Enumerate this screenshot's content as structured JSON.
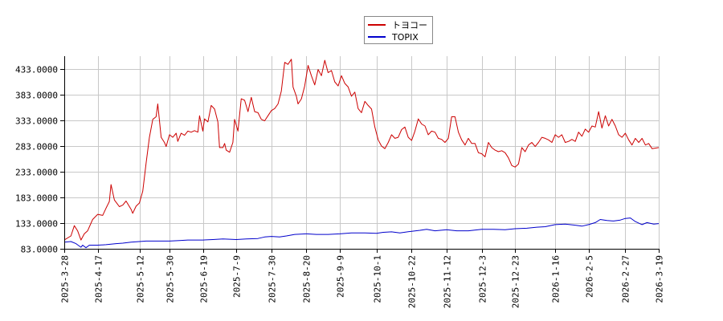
{
  "chart_data": {
    "type": "line",
    "title": "",
    "xlabel": "",
    "ylabel": "",
    "ylim": [
      83,
      458
    ],
    "y_ticks": [
      "83.0000",
      "133.0000",
      "183.0000",
      "233.0000",
      "283.0000",
      "333.0000",
      "383.0000",
      "433.0000"
    ],
    "y_tick_values": [
      83,
      133,
      183,
      233,
      283,
      333,
      383,
      433
    ],
    "x_range": [
      "2025-03-28",
      "2026-03-19"
    ],
    "x_ticks": [
      "2025-3-28",
      "2025-4-17",
      "2025-5-12",
      "2025-5-30",
      "2025-6-19",
      "2025-7-9",
      "2025-7-30",
      "2025-8-20",
      "2025-9-9",
      "2025-10-1",
      "2025-10-22",
      "2025-11-12",
      "2025-12-3",
      "2025-12-23",
      "2026-1-16",
      "2026-2-5",
      "2026-2-27",
      "2026-3-19"
    ],
    "grid": true,
    "legend_position": "top-center",
    "series": [
      {
        "name": "トヨコー",
        "color": "#cc0000",
        "points": [
          [
            "2025-03-28",
            100
          ],
          [
            "2025-04-01",
            108
          ],
          [
            "2025-04-03",
            128
          ],
          [
            "2025-04-05",
            118
          ],
          [
            "2025-04-07",
            100
          ],
          [
            "2025-04-09",
            112
          ],
          [
            "2025-04-11",
            118
          ],
          [
            "2025-04-14",
            140
          ],
          [
            "2025-04-17",
            150
          ],
          [
            "2025-04-20",
            148
          ],
          [
            "2025-04-22",
            162
          ],
          [
            "2025-04-24",
            175
          ],
          [
            "2025-04-25",
            208
          ],
          [
            "2025-04-27",
            178
          ],
          [
            "2025-04-30",
            165
          ],
          [
            "2025-05-02",
            168
          ],
          [
            "2025-05-04",
            176
          ],
          [
            "2025-05-07",
            160
          ],
          [
            "2025-05-08",
            152
          ],
          [
            "2025-05-10",
            166
          ],
          [
            "2025-05-12",
            172
          ],
          [
            "2025-05-14",
            195
          ],
          [
            "2025-05-16",
            250
          ],
          [
            "2025-05-18",
            300
          ],
          [
            "2025-05-20",
            335
          ],
          [
            "2025-05-22",
            340
          ],
          [
            "2025-05-23",
            365
          ],
          [
            "2025-05-25",
            300
          ],
          [
            "2025-05-27",
            290
          ],
          [
            "2025-05-28",
            282
          ],
          [
            "2025-05-30",
            305
          ],
          [
            "2025-06-01",
            300
          ],
          [
            "2025-06-03",
            308
          ],
          [
            "2025-06-04",
            292
          ],
          [
            "2025-06-06",
            308
          ],
          [
            "2025-06-08",
            304
          ],
          [
            "2025-06-10",
            312
          ],
          [
            "2025-06-12",
            310
          ],
          [
            "2025-06-14",
            313
          ],
          [
            "2025-06-16",
            310
          ],
          [
            "2025-06-17",
            342
          ],
          [
            "2025-06-19",
            312
          ],
          [
            "2025-06-20",
            336
          ],
          [
            "2025-06-22",
            330
          ],
          [
            "2025-06-24",
            362
          ],
          [
            "2025-06-26",
            355
          ],
          [
            "2025-06-28",
            330
          ],
          [
            "2025-06-29",
            280
          ],
          [
            "2025-07-01",
            280
          ],
          [
            "2025-07-02",
            288
          ],
          [
            "2025-07-03",
            275
          ],
          [
            "2025-07-05",
            271
          ],
          [
            "2025-07-07",
            290
          ],
          [
            "2025-07-08",
            335
          ],
          [
            "2025-07-10",
            312
          ],
          [
            "2025-07-12",
            375
          ],
          [
            "2025-07-14",
            372
          ],
          [
            "2025-07-16",
            350
          ],
          [
            "2025-07-18",
            378
          ],
          [
            "2025-07-20",
            350
          ],
          [
            "2025-07-22",
            348
          ],
          [
            "2025-07-24",
            335
          ],
          [
            "2025-07-26",
            332
          ],
          [
            "2025-07-28",
            342
          ],
          [
            "2025-07-30",
            352
          ],
          [
            "2025-08-01",
            356
          ],
          [
            "2025-08-03",
            365
          ],
          [
            "2025-08-05",
            390
          ],
          [
            "2025-08-07",
            446
          ],
          [
            "2025-08-09",
            442
          ],
          [
            "2025-08-11",
            452
          ],
          [
            "2025-08-12",
            398
          ],
          [
            "2025-08-14",
            380
          ],
          [
            "2025-08-15",
            365
          ],
          [
            "2025-08-17",
            375
          ],
          [
            "2025-08-19",
            400
          ],
          [
            "2025-08-21",
            440
          ],
          [
            "2025-08-23",
            420
          ],
          [
            "2025-08-25",
            402
          ],
          [
            "2025-08-27",
            432
          ],
          [
            "2025-08-29",
            420
          ],
          [
            "2025-08-31",
            450
          ],
          [
            "2025-09-02",
            426
          ],
          [
            "2025-09-04",
            430
          ],
          [
            "2025-09-06",
            408
          ],
          [
            "2025-09-08",
            400
          ],
          [
            "2025-09-10",
            420
          ],
          [
            "2025-09-12",
            405
          ],
          [
            "2025-09-14",
            398
          ],
          [
            "2025-09-16",
            380
          ],
          [
            "2025-09-18",
            388
          ],
          [
            "2025-09-20",
            356
          ],
          [
            "2025-09-22",
            348
          ],
          [
            "2025-09-24",
            370
          ],
          [
            "2025-09-26",
            362
          ],
          [
            "2025-09-28",
            355
          ],
          [
            "2025-09-30",
            320
          ],
          [
            "2025-10-02",
            295
          ],
          [
            "2025-10-04",
            283
          ],
          [
            "2025-10-06",
            278
          ],
          [
            "2025-10-08",
            290
          ],
          [
            "2025-10-10",
            305
          ],
          [
            "2025-10-12",
            298
          ],
          [
            "2025-10-14",
            300
          ],
          [
            "2025-10-16",
            315
          ],
          [
            "2025-10-18",
            320
          ],
          [
            "2025-10-20",
            300
          ],
          [
            "2025-10-22",
            294
          ],
          [
            "2025-10-24",
            312
          ],
          [
            "2025-10-26",
            336
          ],
          [
            "2025-10-28",
            326
          ],
          [
            "2025-10-30",
            322
          ],
          [
            "2025-11-01",
            305
          ],
          [
            "2025-11-03",
            312
          ],
          [
            "2025-11-05",
            310
          ],
          [
            "2025-11-07",
            298
          ],
          [
            "2025-11-09",
            296
          ],
          [
            "2025-11-11",
            290
          ],
          [
            "2025-11-13",
            298
          ],
          [
            "2025-11-15",
            340
          ],
          [
            "2025-11-17",
            340
          ],
          [
            "2025-11-19",
            310
          ],
          [
            "2025-11-21",
            295
          ],
          [
            "2025-11-23",
            285
          ],
          [
            "2025-11-25",
            298
          ],
          [
            "2025-11-27",
            288
          ],
          [
            "2025-11-29",
            288
          ],
          [
            "2025-12-01",
            270
          ],
          [
            "2025-12-03",
            268
          ],
          [
            "2025-12-05",
            262
          ],
          [
            "2025-12-07",
            290
          ],
          [
            "2025-12-09",
            280
          ],
          [
            "2025-12-11",
            275
          ],
          [
            "2025-12-13",
            272
          ],
          [
            "2025-12-15",
            274
          ],
          [
            "2025-12-17",
            270
          ],
          [
            "2025-12-19",
            260
          ],
          [
            "2025-12-21",
            245
          ],
          [
            "2025-12-23",
            242
          ],
          [
            "2025-12-25",
            248
          ],
          [
            "2025-12-27",
            280
          ],
          [
            "2025-12-29",
            272
          ],
          [
            "2025-12-31",
            285
          ],
          [
            "2026-01-02",
            290
          ],
          [
            "2026-01-04",
            282
          ],
          [
            "2026-01-06",
            290
          ],
          [
            "2026-01-08",
            300
          ],
          [
            "2026-01-10",
            298
          ],
          [
            "2026-01-12",
            295
          ],
          [
            "2026-01-14",
            290
          ],
          [
            "2026-01-16",
            305
          ],
          [
            "2026-01-18",
            300
          ],
          [
            "2026-01-20",
            305
          ],
          [
            "2026-01-22",
            290
          ],
          [
            "2026-01-24",
            292
          ],
          [
            "2026-01-26",
            296
          ],
          [
            "2026-01-28",
            292
          ],
          [
            "2026-01-30",
            310
          ],
          [
            "2026-02-01",
            302
          ],
          [
            "2026-02-03",
            316
          ],
          [
            "2026-02-05",
            310
          ],
          [
            "2026-02-07",
            322
          ],
          [
            "2026-02-09",
            320
          ],
          [
            "2026-02-11",
            350
          ],
          [
            "2026-02-13",
            318
          ],
          [
            "2026-02-15",
            342
          ],
          [
            "2026-02-17",
            322
          ],
          [
            "2026-02-19",
            335
          ],
          [
            "2026-02-21",
            322
          ],
          [
            "2026-02-23",
            305
          ],
          [
            "2026-02-25",
            300
          ],
          [
            "2026-02-27",
            308
          ],
          [
            "2026-03-01",
            295
          ],
          [
            "2026-03-03",
            285
          ],
          [
            "2026-03-05",
            298
          ],
          [
            "2026-03-07",
            290
          ],
          [
            "2026-03-09",
            298
          ],
          [
            "2026-03-11",
            285
          ],
          [
            "2026-03-13",
            288
          ],
          [
            "2026-03-15",
            278
          ],
          [
            "2026-03-19",
            280
          ]
        ]
      },
      {
        "name": "TOPIX",
        "color": "#0000cc",
        "points": [
          [
            "2025-03-28",
            96
          ],
          [
            "2025-04-01",
            97
          ],
          [
            "2025-04-04",
            93
          ],
          [
            "2025-04-07",
            86
          ],
          [
            "2025-04-08",
            90
          ],
          [
            "2025-04-10",
            85
          ],
          [
            "2025-04-12",
            90
          ],
          [
            "2025-04-17",
            90
          ],
          [
            "2025-04-22",
            91
          ],
          [
            "2025-04-28",
            93
          ],
          [
            "2025-05-02",
            94
          ],
          [
            "2025-05-07",
            96
          ],
          [
            "2025-05-12",
            97
          ],
          [
            "2025-05-16",
            98
          ],
          [
            "2025-05-22",
            98
          ],
          [
            "2025-05-30",
            98
          ],
          [
            "2025-06-05",
            99
          ],
          [
            "2025-06-10",
            100
          ],
          [
            "2025-06-19",
            100
          ],
          [
            "2025-06-25",
            101
          ],
          [
            "2025-07-01",
            102
          ],
          [
            "2025-07-09",
            101
          ],
          [
            "2025-07-15",
            102
          ],
          [
            "2025-07-22",
            103
          ],
          [
            "2025-07-26",
            106
          ],
          [
            "2025-07-30",
            107
          ],
          [
            "2025-08-04",
            106
          ],
          [
            "2025-08-08",
            108
          ],
          [
            "2025-08-13",
            111
          ],
          [
            "2025-08-20",
            112
          ],
          [
            "2025-08-26",
            111
          ],
          [
            "2025-09-02",
            111
          ],
          [
            "2025-09-09",
            112
          ],
          [
            "2025-09-16",
            114
          ],
          [
            "2025-09-24",
            114
          ],
          [
            "2025-10-01",
            113
          ],
          [
            "2025-10-05",
            115
          ],
          [
            "2025-10-10",
            116
          ],
          [
            "2025-10-15",
            114
          ],
          [
            "2025-10-22",
            117
          ],
          [
            "2025-10-27",
            119
          ],
          [
            "2025-10-31",
            121
          ],
          [
            "2025-11-05",
            118
          ],
          [
            "2025-11-12",
            120
          ],
          [
            "2025-11-18",
            118
          ],
          [
            "2025-11-25",
            118
          ],
          [
            "2025-12-03",
            121
          ],
          [
            "2025-12-10",
            121
          ],
          [
            "2025-12-17",
            120
          ],
          [
            "2025-12-23",
            122
          ],
          [
            "2025-12-30",
            123
          ],
          [
            "2026-01-05",
            125
          ],
          [
            "2026-01-10",
            126
          ],
          [
            "2026-01-16",
            130
          ],
          [
            "2026-01-22",
            131
          ],
          [
            "2026-01-28",
            129
          ],
          [
            "2026-02-01",
            127
          ],
          [
            "2026-02-05",
            130
          ],
          [
            "2026-02-09",
            134
          ],
          [
            "2026-02-12",
            140
          ],
          [
            "2026-02-16",
            138
          ],
          [
            "2026-02-20",
            137
          ],
          [
            "2026-02-24",
            139
          ],
          [
            "2026-02-27",
            142
          ],
          [
            "2026-03-02",
            143
          ],
          [
            "2026-03-05",
            136
          ],
          [
            "2026-03-09",
            130
          ],
          [
            "2026-03-12",
            134
          ],
          [
            "2026-03-16",
            131
          ],
          [
            "2026-03-19",
            132
          ]
        ]
      }
    ]
  }
}
